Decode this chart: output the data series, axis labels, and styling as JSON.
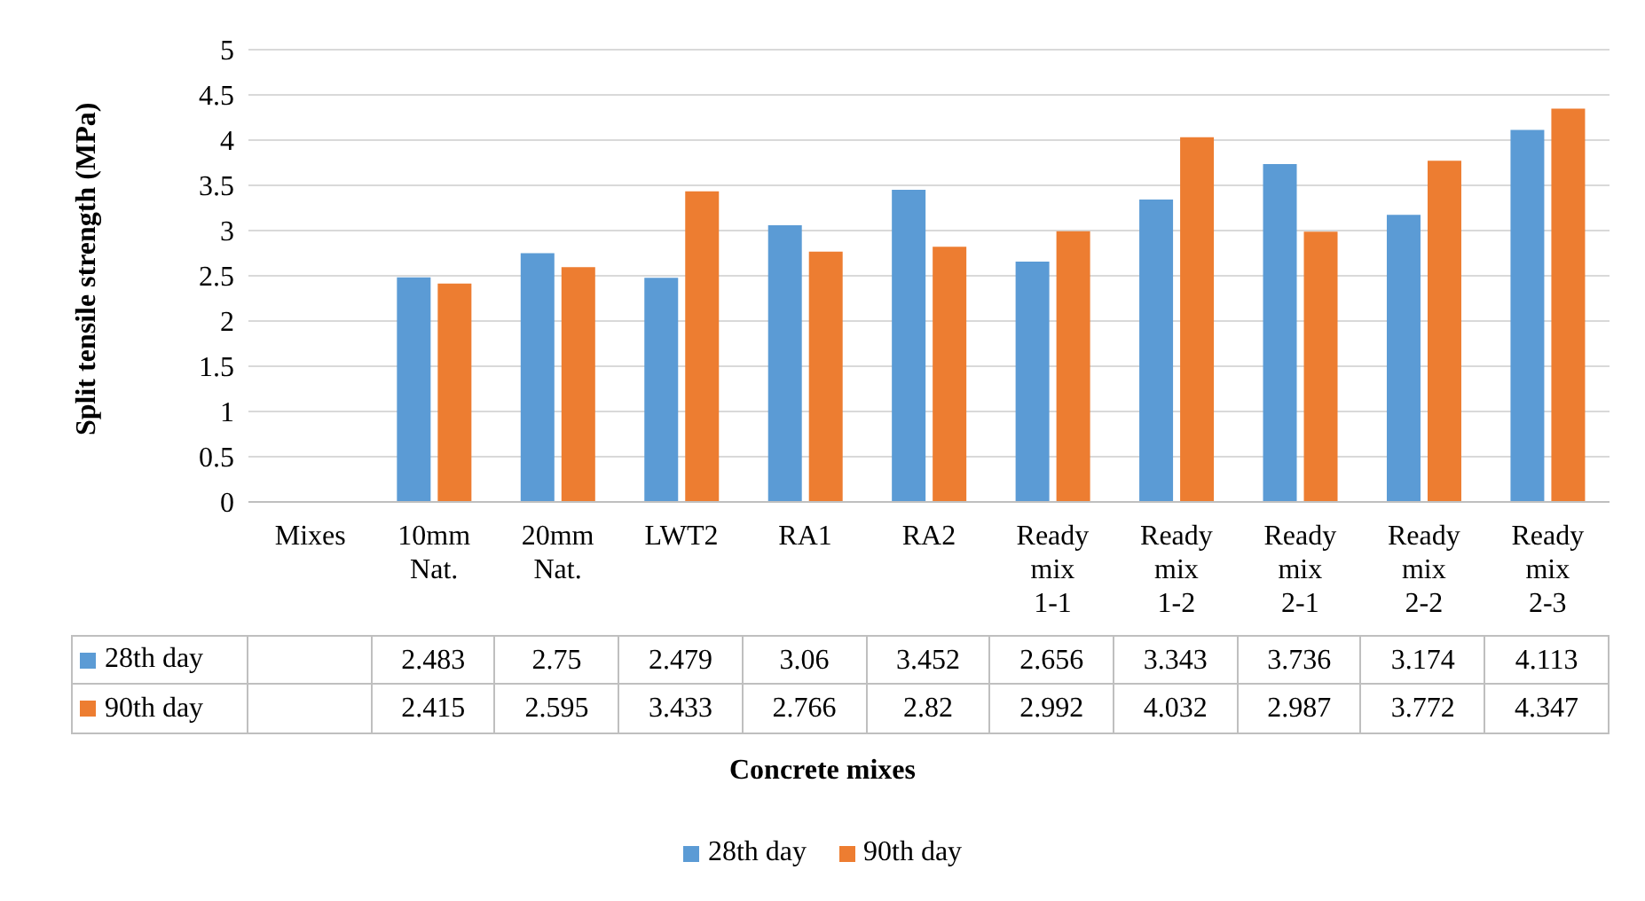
{
  "chart_data": {
    "type": "bar",
    "xlabel": "Concrete mixes",
    "ylabel": "Split tensile strength (MPa)",
    "categories": [
      "Mixes",
      "10mm Nat.",
      "20mm Nat.",
      "LWT2",
      "RA1",
      "RA2",
      "Ready mix 1-1",
      "Ready mix 1-2",
      "Ready mix 2-1",
      "Ready mix 2-2",
      "Ready mix 2-3"
    ],
    "series": [
      {
        "name": "28th day",
        "color": "#5b9bd5",
        "values": [
          null,
          2.483,
          2.75,
          2.479,
          3.06,
          3.452,
          2.656,
          3.343,
          3.736,
          3.174,
          4.113
        ]
      },
      {
        "name": "90th day",
        "color": "#ed7d31",
        "values": [
          null,
          2.415,
          2.595,
          3.433,
          2.766,
          2.82,
          2.992,
          4.032,
          2.987,
          3.772,
          4.347
        ]
      }
    ],
    "ylim": [
      0,
      5
    ],
    "yticks": [
      0,
      0.5,
      1,
      1.5,
      2,
      2.5,
      3,
      3.5,
      4,
      4.5,
      5
    ],
    "grid": "y",
    "legend": "bottom",
    "data_labels": true
  }
}
